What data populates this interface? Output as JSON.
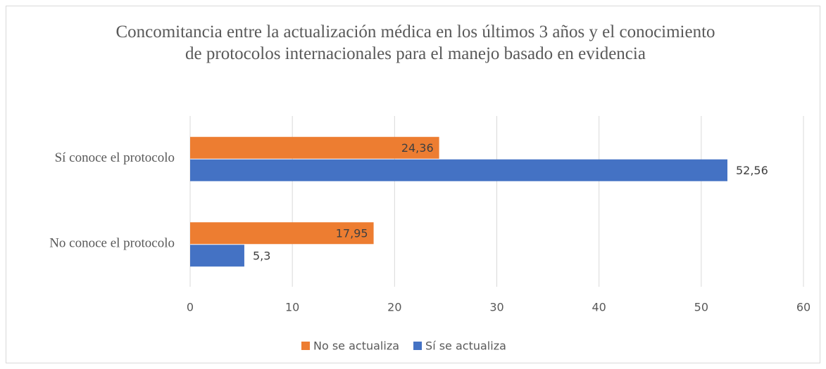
{
  "chart_data": {
    "type": "barh",
    "title": "Concomitancia entre la actualización médica en los últimos 3 años y el conocimiento de protocolos internacionales para el manejo basado en evidencia",
    "categories": [
      "Sí conoce el protocolo",
      "No conoce el protocolo"
    ],
    "series": [
      {
        "name": "No se actualiza",
        "color": "#ed7d31",
        "values": [
          24.36,
          17.95
        ],
        "value_labels": [
          "24,36",
          "17,95"
        ]
      },
      {
        "name": "Sí se actualiza",
        "color": "#4472c4",
        "values": [
          52.56,
          5.3
        ],
        "value_labels": [
          "52,56",
          "5,3"
        ]
      }
    ],
    "xlim": [
      0,
      60
    ],
    "xticks": [
      0,
      10,
      20,
      30,
      40,
      50,
      60
    ],
    "grid": true,
    "legend": "bottom"
  }
}
